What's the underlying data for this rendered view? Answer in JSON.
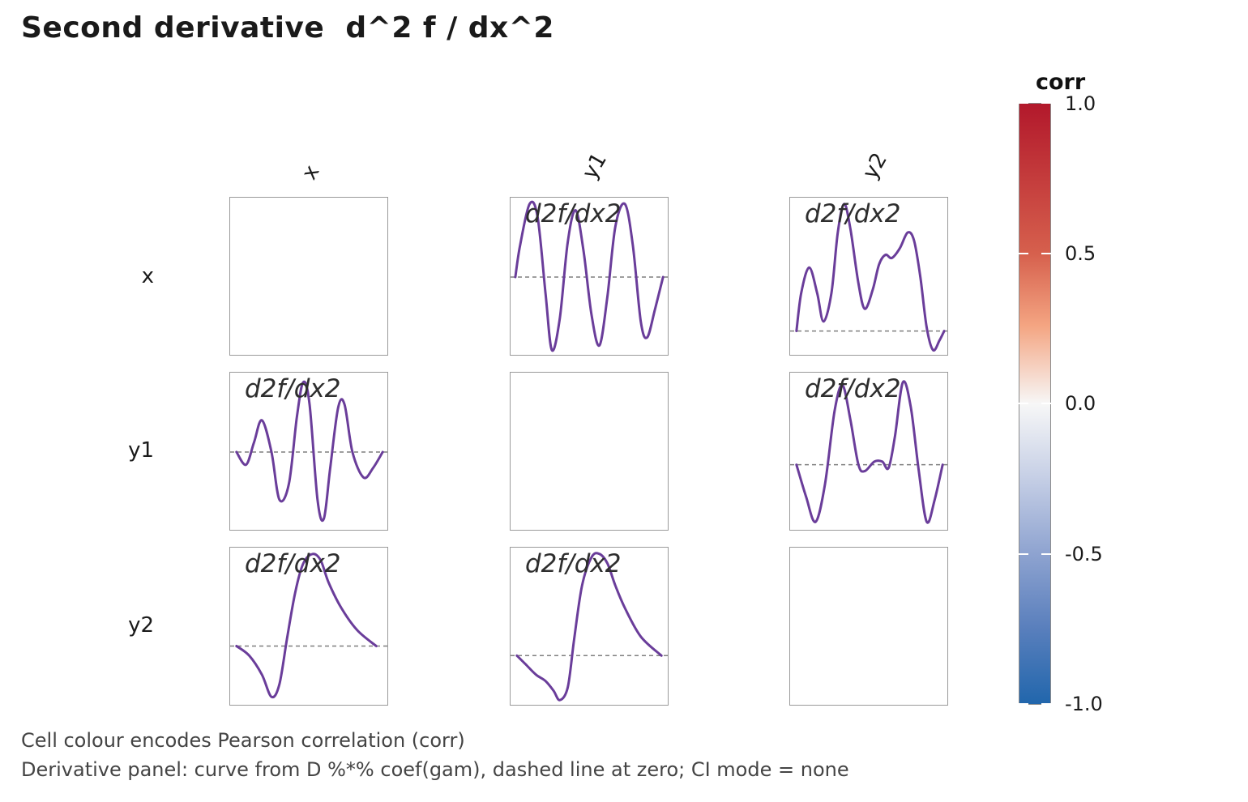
{
  "title": "Second derivative  d^2 f / dx^2",
  "columns": [
    "x",
    "y1",
    "y2"
  ],
  "rows": [
    "x",
    "y1",
    "y2"
  ],
  "panel_label": "d2f/dx2",
  "legend": {
    "title": "corr",
    "ticks": [
      "1.0",
      "0.5",
      "0.0",
      "-0.5",
      "-1.0"
    ],
    "colors": {
      "high": "#b2182b",
      "mid": "#f7f7f7",
      "low": "#2166ac"
    }
  },
  "captions": [
    "Cell colour encodes Pearson correlation (corr)",
    "Derivative panel: curve from D %*% coef(gam), dashed line at zero; CI mode = none"
  ],
  "styles": {
    "curve_color": "#6a3d9a",
    "zero_line_color": "#7f7f7f",
    "panel_border": "#9a9a9a"
  },
  "chart_data": {
    "type": "line",
    "title": "Second derivative  d^2 f / dx^2",
    "layout": "3x3 matrix of panels; diagonal empty; off-diagonal panels show d2f/dx2 curves",
    "variables": [
      "x",
      "y1",
      "y2"
    ],
    "xlabel": "",
    "ylabel": "",
    "legend": {
      "title": "corr",
      "range": [
        -1.0,
        1.0
      ],
      "ticks": [
        1.0,
        0.5,
        0.0,
        -0.5,
        -1.0
      ],
      "position": "right"
    },
    "note": "Curves given in panel-normalized coords: x 0..1 left→right, y 0..1 top→bottom; zero = y of dashed line.",
    "panels": [
      {
        "row": "x",
        "col": "y1",
        "zero": 0.5,
        "points": [
          [
            0.03,
            0.5
          ],
          [
            0.06,
            0.3
          ],
          [
            0.12,
            0.04
          ],
          [
            0.17,
            0.12
          ],
          [
            0.22,
            0.6
          ],
          [
            0.26,
            0.96
          ],
          [
            0.31,
            0.76
          ],
          [
            0.36,
            0.28
          ],
          [
            0.41,
            0.08
          ],
          [
            0.46,
            0.34
          ],
          [
            0.51,
            0.74
          ],
          [
            0.56,
            0.93
          ],
          [
            0.61,
            0.62
          ],
          [
            0.66,
            0.18
          ],
          [
            0.72,
            0.04
          ],
          [
            0.77,
            0.3
          ],
          [
            0.82,
            0.78
          ],
          [
            0.86,
            0.88
          ],
          [
            0.91,
            0.7
          ],
          [
            0.96,
            0.5
          ]
        ]
      },
      {
        "row": "x",
        "col": "y2",
        "zero": 0.84,
        "points": [
          [
            0.04,
            0.84
          ],
          [
            0.07,
            0.6
          ],
          [
            0.12,
            0.44
          ],
          [
            0.17,
            0.6
          ],
          [
            0.21,
            0.78
          ],
          [
            0.26,
            0.6
          ],
          [
            0.3,
            0.22
          ],
          [
            0.34,
            0.04
          ],
          [
            0.38,
            0.2
          ],
          [
            0.43,
            0.54
          ],
          [
            0.47,
            0.7
          ],
          [
            0.52,
            0.58
          ],
          [
            0.56,
            0.42
          ],
          [
            0.6,
            0.36
          ],
          [
            0.64,
            0.38
          ],
          [
            0.69,
            0.32
          ],
          [
            0.74,
            0.22
          ],
          [
            0.78,
            0.27
          ],
          [
            0.82,
            0.5
          ],
          [
            0.86,
            0.82
          ],
          [
            0.9,
            0.96
          ],
          [
            0.94,
            0.9
          ],
          [
            0.97,
            0.84
          ]
        ]
      },
      {
        "row": "y1",
        "col": "x",
        "zero": 0.5,
        "points": [
          [
            0.04,
            0.5
          ],
          [
            0.1,
            0.58
          ],
          [
            0.15,
            0.44
          ],
          [
            0.2,
            0.3
          ],
          [
            0.26,
            0.5
          ],
          [
            0.31,
            0.8
          ],
          [
            0.37,
            0.7
          ],
          [
            0.42,
            0.28
          ],
          [
            0.46,
            0.06
          ],
          [
            0.5,
            0.2
          ],
          [
            0.55,
            0.8
          ],
          [
            0.59,
            0.92
          ],
          [
            0.63,
            0.6
          ],
          [
            0.68,
            0.22
          ],
          [
            0.72,
            0.2
          ],
          [
            0.77,
            0.5
          ],
          [
            0.84,
            0.66
          ],
          [
            0.9,
            0.6
          ],
          [
            0.96,
            0.5
          ]
        ]
      },
      {
        "row": "y1",
        "col": "y2",
        "zero": 0.58,
        "points": [
          [
            0.04,
            0.58
          ],
          [
            0.1,
            0.78
          ],
          [
            0.16,
            0.94
          ],
          [
            0.22,
            0.7
          ],
          [
            0.28,
            0.24
          ],
          [
            0.33,
            0.08
          ],
          [
            0.38,
            0.3
          ],
          [
            0.43,
            0.58
          ],
          [
            0.47,
            0.62
          ],
          [
            0.53,
            0.56
          ],
          [
            0.58,
            0.56
          ],
          [
            0.62,
            0.6
          ],
          [
            0.66,
            0.4
          ],
          [
            0.71,
            0.06
          ],
          [
            0.76,
            0.22
          ],
          [
            0.81,
            0.62
          ],
          [
            0.86,
            0.94
          ],
          [
            0.91,
            0.8
          ],
          [
            0.96,
            0.58
          ]
        ]
      },
      {
        "row": "y2",
        "col": "x",
        "zero": 0.62,
        "points": [
          [
            0.04,
            0.62
          ],
          [
            0.12,
            0.68
          ],
          [
            0.2,
            0.8
          ],
          [
            0.26,
            0.94
          ],
          [
            0.31,
            0.86
          ],
          [
            0.36,
            0.56
          ],
          [
            0.41,
            0.28
          ],
          [
            0.46,
            0.1
          ],
          [
            0.52,
            0.04
          ],
          [
            0.57,
            0.08
          ],
          [
            0.62,
            0.22
          ],
          [
            0.7,
            0.38
          ],
          [
            0.8,
            0.52
          ],
          [
            0.92,
            0.62
          ]
        ]
      },
      {
        "row": "y2",
        "col": "y1",
        "zero": 0.68,
        "points": [
          [
            0.04,
            0.68
          ],
          [
            0.1,
            0.74
          ],
          [
            0.16,
            0.8
          ],
          [
            0.22,
            0.84
          ],
          [
            0.27,
            0.9
          ],
          [
            0.31,
            0.96
          ],
          [
            0.36,
            0.88
          ],
          [
            0.4,
            0.58
          ],
          [
            0.45,
            0.24
          ],
          [
            0.51,
            0.06
          ],
          [
            0.56,
            0.04
          ],
          [
            0.61,
            0.1
          ],
          [
            0.66,
            0.24
          ],
          [
            0.72,
            0.38
          ],
          [
            0.82,
            0.56
          ],
          [
            0.95,
            0.68
          ]
        ]
      }
    ]
  }
}
